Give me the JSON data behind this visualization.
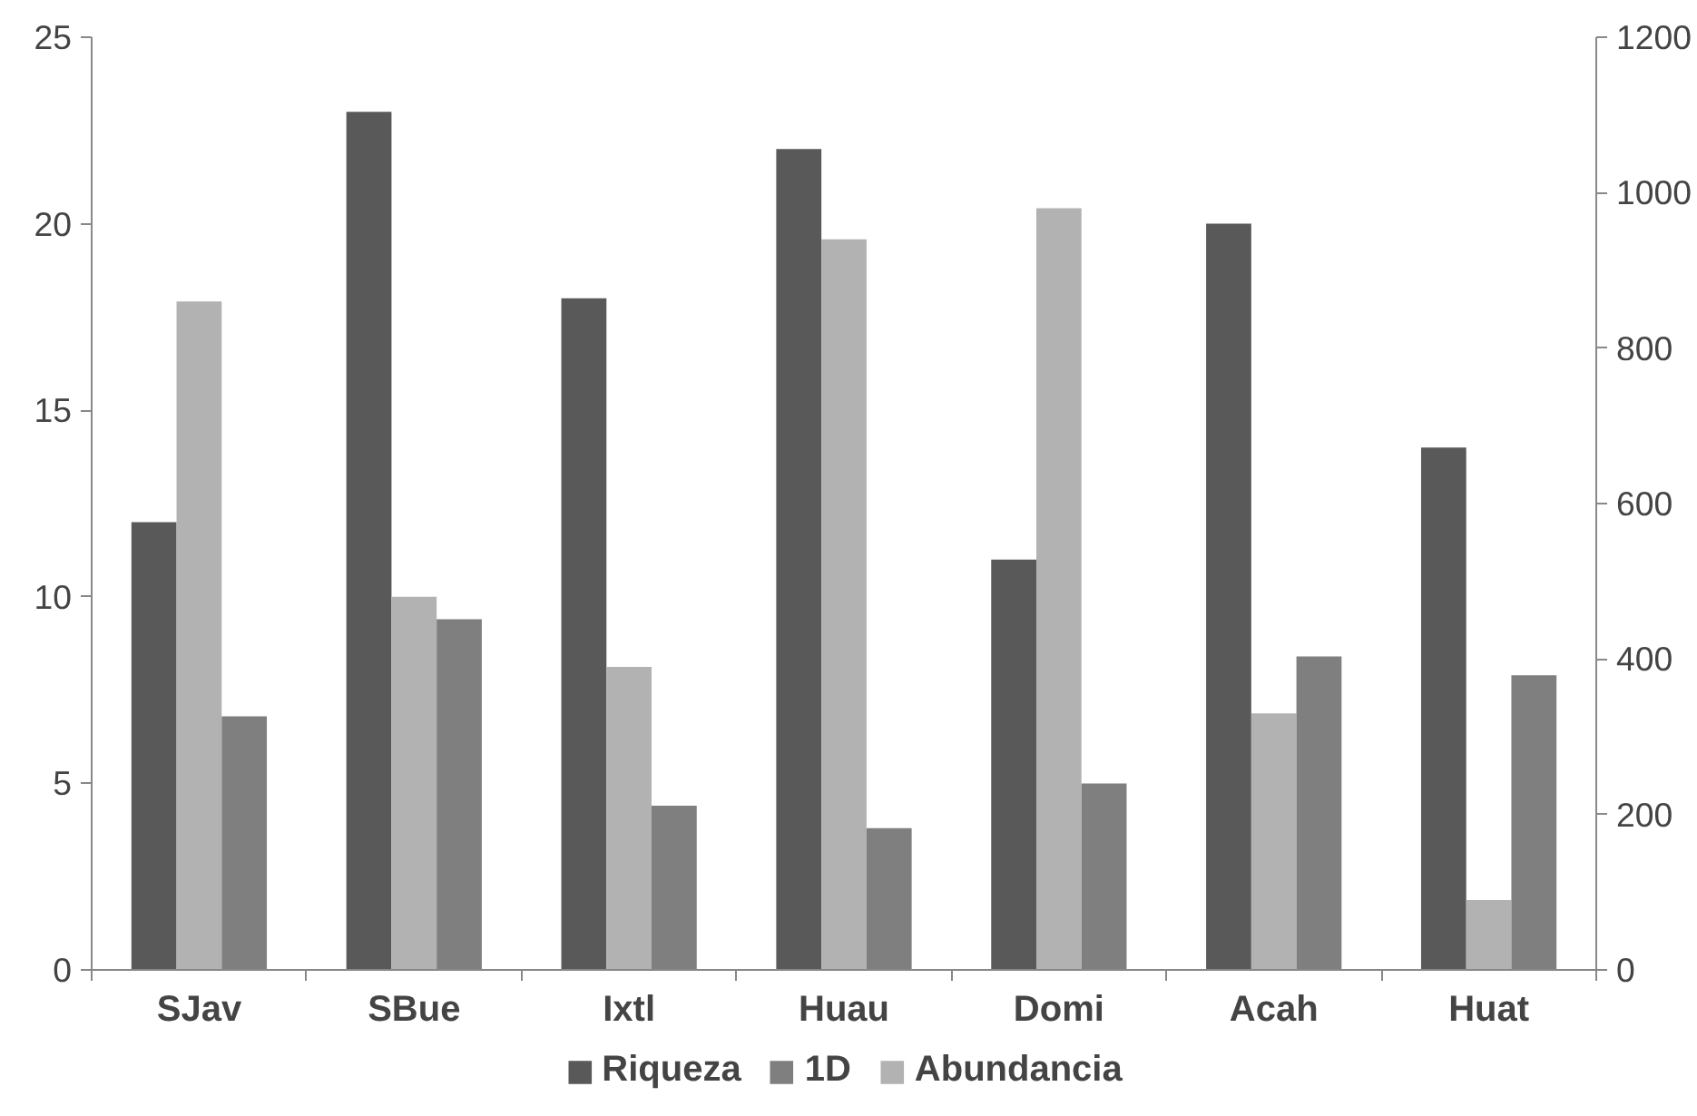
{
  "chart_data": {
    "type": "bar",
    "categories": [
      "SJav",
      "SBue",
      "Ixtl",
      "Huau",
      "Domi",
      "Acah",
      "Huat"
    ],
    "series": [
      {
        "name": "Riqueza",
        "color": "#595959",
        "values": [
          12,
          23,
          18,
          22,
          11,
          20,
          14
        ]
      },
      {
        "name": "Abundancia",
        "color": "#b2b2b2",
        "axis": "y2",
        "values": [
          860,
          480,
          390,
          940,
          980,
          330,
          90
        ]
      },
      {
        "name": "1D",
        "color": "#7f7f7f",
        "values": [
          6.8,
          9.4,
          4.4,
          3.8,
          5.0,
          8.4,
          7.9
        ]
      }
    ],
    "ylim": [
      0,
      25
    ],
    "yticks": [
      0,
      5,
      10,
      15,
      20,
      25
    ],
    "y2lim": [
      0,
      1200
    ],
    "y2ticks": [
      0,
      200,
      400,
      600,
      800,
      1000,
      1200
    ],
    "grid": false,
    "legend": "bottom"
  }
}
